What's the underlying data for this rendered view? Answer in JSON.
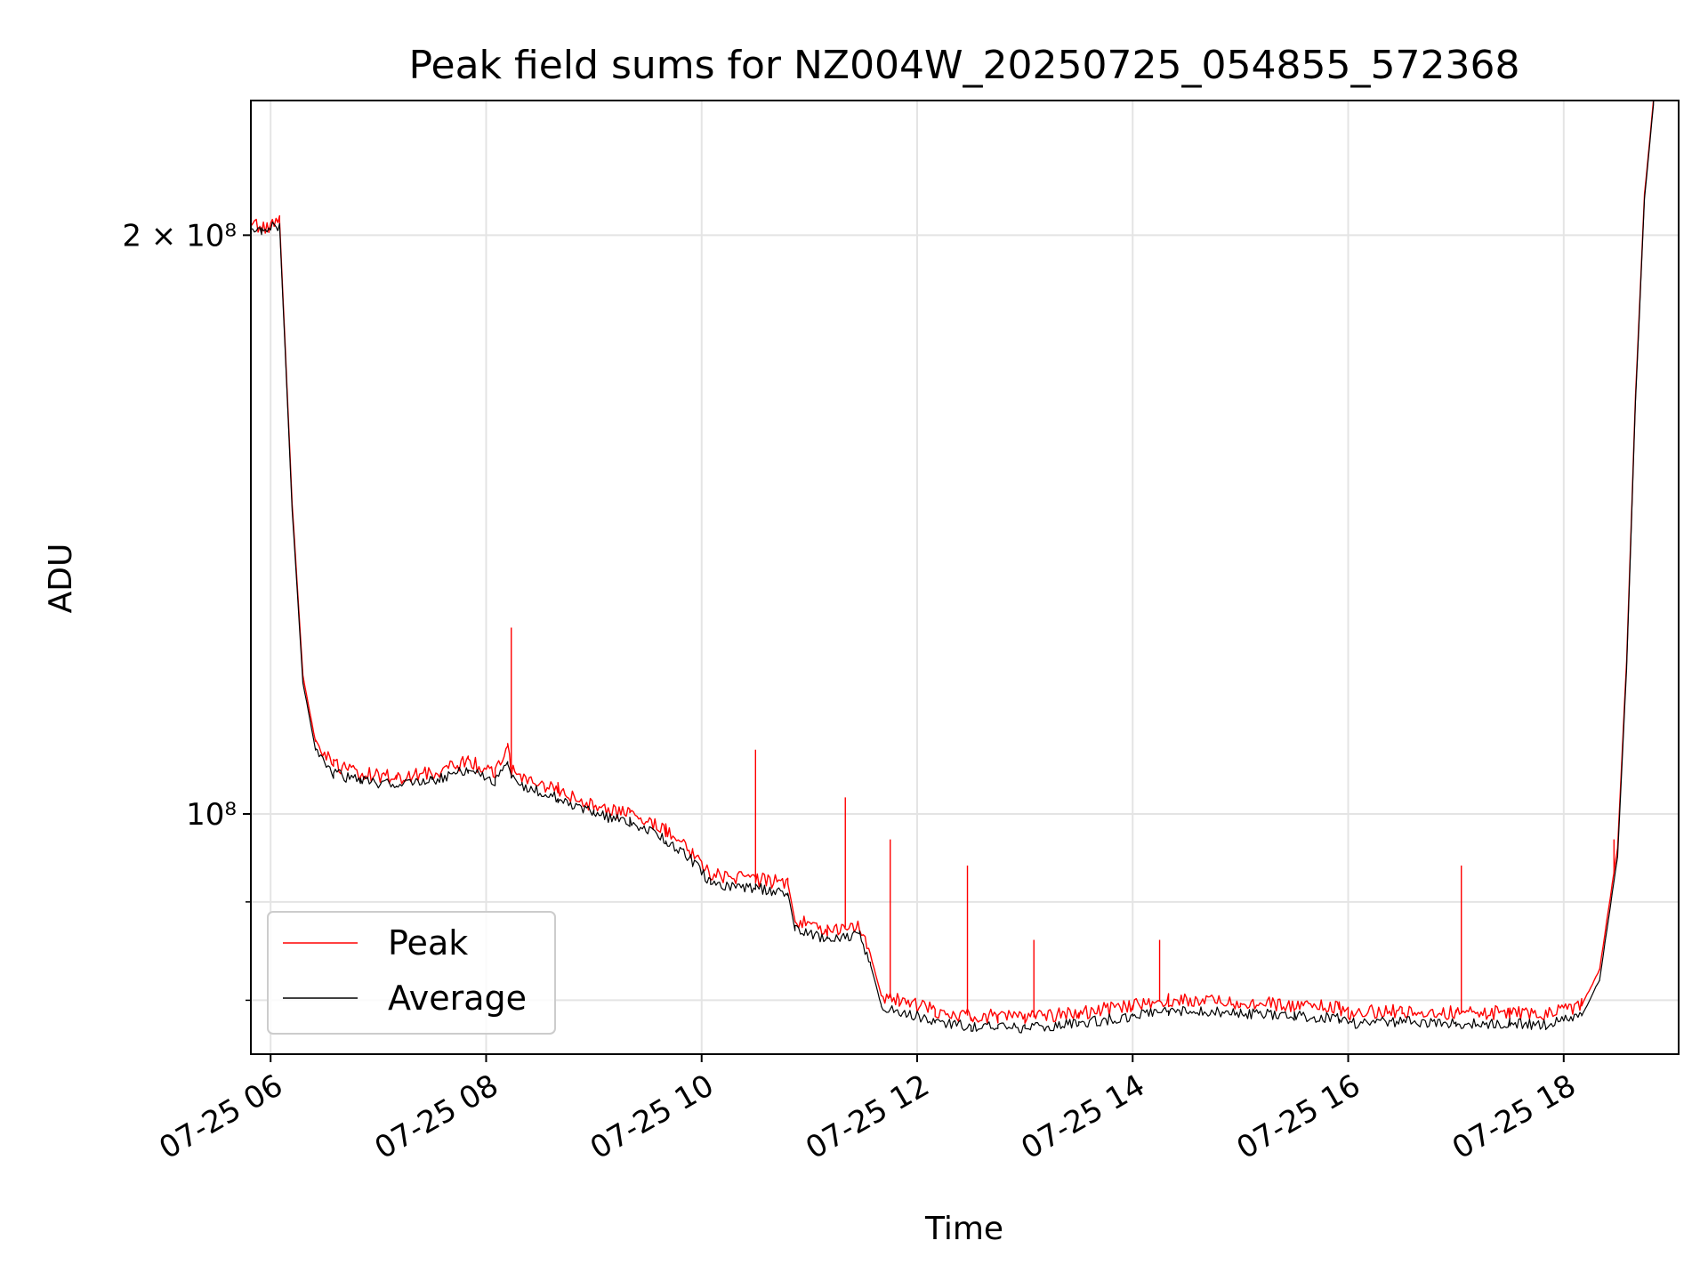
{
  "chart_data": {
    "type": "line",
    "title": "Peak field sums for NZ004W_20250725_054855_572368",
    "xlabel": "Time",
    "ylabel": "ADU",
    "yscale": "log",
    "grid": true,
    "legend_position": "lower-left",
    "x_ticks": [
      "07-25 06",
      "07-25 08",
      "07-25 10",
      "07-25 12",
      "07-25 14",
      "07-25 16",
      "07-25 18"
    ],
    "y_tick_labels": [
      "2 × 10⁸",
      "10⁸"
    ],
    "x_range": [
      "2025-07-25 05:49",
      "2025-07-25 19:04"
    ],
    "ylim": [
      75000000,
      235000000
    ],
    "colors": {
      "Peak": "#ff0000",
      "Average": "#000000"
    },
    "series": [
      {
        "name": "Peak",
        "x": [
          "2025-07-25 05:49",
          "2025-07-25 05:55",
          "2025-07-25 06:05",
          "2025-07-25 06:12",
          "2025-07-25 06:18",
          "2025-07-25 06:25",
          "2025-07-25 06:35",
          "2025-07-25 06:50",
          "2025-07-25 07:10",
          "2025-07-25 07:30",
          "2025-07-25 07:50",
          "2025-07-25 08:05",
          "2025-07-25 08:12",
          "2025-07-25 08:14",
          "2025-07-25 08:20",
          "2025-07-25 08:40",
          "2025-07-25 09:00",
          "2025-07-25 09:20",
          "2025-07-25 09:40",
          "2025-07-25 09:55",
          "2025-07-25 10:05",
          "2025-07-25 10:30",
          "2025-07-25 10:48",
          "2025-07-25 10:52",
          "2025-07-25 11:10",
          "2025-07-25 11:28",
          "2025-07-25 11:34",
          "2025-07-25 11:40",
          "2025-07-25 11:50",
          "2025-07-25 12:10",
          "2025-07-25 12:30",
          "2025-07-25 12:45",
          "2025-07-25 13:00",
          "2025-07-25 13:30",
          "2025-07-25 14:00",
          "2025-07-25 14:20",
          "2025-07-25 15:00",
          "2025-07-25 15:30",
          "2025-07-25 15:55",
          "2025-07-25 16:00",
          "2025-07-25 16:30",
          "2025-07-25 17:00",
          "2025-07-25 17:30",
          "2025-07-25 17:50",
          "2025-07-25 18:10",
          "2025-07-25 18:20",
          "2025-07-25 18:30",
          "2025-07-25 18:35",
          "2025-07-25 18:40",
          "2025-07-25 18:45",
          "2025-07-25 18:50",
          "2025-07-25 18:55",
          "2025-07-25 19:04"
        ],
        "values": [
          203000000,
          201500000,
          203500000,
          145000000,
          118000000,
          109000000,
          106000000,
          105000000,
          104500000,
          105000000,
          106500000,
          105000000,
          108000000,
          105500000,
          104500000,
          103000000,
          101000000,
          100000000,
          98000000,
          95500000,
          93000000,
          92500000,
          92000000,
          88000000,
          87000000,
          87500000,
          84500000,
          80500000,
          80000000,
          79000000,
          78500000,
          78500000,
          78300000,
          78800000,
          79500000,
          80000000,
          79800000,
          79500000,
          79300000,
          78800000,
          79000000,
          78800000,
          78800000,
          78700000,
          79500000,
          83000000,
          96000000,
          120000000,
          165000000,
          210000000,
          235000000,
          238000000,
          238000000
        ]
      },
      {
        "name": "Average",
        "x": [
          "2025-07-25 05:49",
          "2025-07-25 05:55",
          "2025-07-25 06:05",
          "2025-07-25 06:12",
          "2025-07-25 06:18",
          "2025-07-25 06:25",
          "2025-07-25 06:35",
          "2025-07-25 06:50",
          "2025-07-25 07:10",
          "2025-07-25 07:30",
          "2025-07-25 07:50",
          "2025-07-25 08:05",
          "2025-07-25 08:12",
          "2025-07-25 08:14",
          "2025-07-25 08:20",
          "2025-07-25 08:40",
          "2025-07-25 09:00",
          "2025-07-25 09:20",
          "2025-07-25 09:40",
          "2025-07-25 09:55",
          "2025-07-25 10:05",
          "2025-07-25 10:30",
          "2025-07-25 10:48",
          "2025-07-25 10:52",
          "2025-07-25 11:10",
          "2025-07-25 11:28",
          "2025-07-25 11:34",
          "2025-07-25 11:40",
          "2025-07-25 11:50",
          "2025-07-25 12:10",
          "2025-07-25 12:30",
          "2025-07-25 12:45",
          "2025-07-25 13:00",
          "2025-07-25 13:30",
          "2025-07-25 14:00",
          "2025-07-25 14:20",
          "2025-07-25 15:00",
          "2025-07-25 15:30",
          "2025-07-25 15:55",
          "2025-07-25 16:00",
          "2025-07-25 16:30",
          "2025-07-25 17:00",
          "2025-07-25 17:30",
          "2025-07-25 17:50",
          "2025-07-25 18:10",
          "2025-07-25 18:20",
          "2025-07-25 18:30",
          "2025-07-25 18:35",
          "2025-07-25 18:40",
          "2025-07-25 18:45",
          "2025-07-25 18:50",
          "2025-07-25 18:55",
          "2025-07-25 19:04"
        ],
        "values": [
          202000000,
          201000000,
          202500000,
          144000000,
          117000000,
          108000000,
          105000000,
          104000000,
          103500000,
          104000000,
          105500000,
          104000000,
          106000000,
          104500000,
          103500000,
          102000000,
          100000000,
          99000000,
          97000000,
          94500000,
          92000000,
          91500000,
          91000000,
          87000000,
          86000000,
          86500000,
          83500000,
          79500000,
          79000000,
          78000000,
          77500000,
          77500000,
          77300000,
          77800000,
          78500000,
          79000000,
          78800000,
          78500000,
          78300000,
          77800000,
          78000000,
          77800000,
          77800000,
          77700000,
          78500000,
          82000000,
          95000000,
          119000000,
          164000000,
          209000000,
          234000000,
          238000000,
          238000000
        ]
      }
    ],
    "spikes": {
      "Peak": [
        {
          "x": "2025-07-25 08:14",
          "y": 125000000
        },
        {
          "x": "2025-07-25 10:30",
          "y": 108000000
        },
        {
          "x": "2025-07-25 11:20",
          "y": 102000000
        },
        {
          "x": "2025-07-25 11:45",
          "y": 97000000
        },
        {
          "x": "2025-07-25 12:28",
          "y": 94000000
        },
        {
          "x": "2025-07-25 13:05",
          "y": 86000000
        },
        {
          "x": "2025-07-25 14:15",
          "y": 86000000
        },
        {
          "x": "2025-07-25 17:03",
          "y": 94000000
        },
        {
          "x": "2025-07-25 18:28",
          "y": 97000000
        }
      ]
    }
  }
}
